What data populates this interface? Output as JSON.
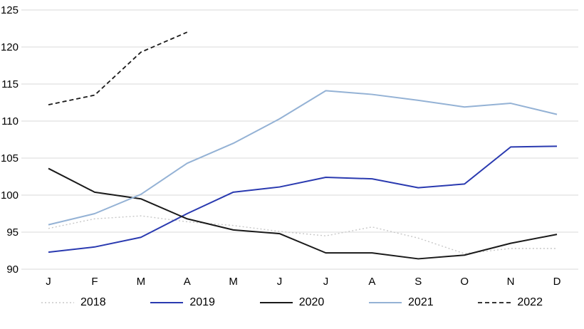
{
  "chart_data": {
    "type": "line",
    "x": [
      "J",
      "F",
      "M",
      "A",
      "M",
      "J",
      "J",
      "A",
      "S",
      "O",
      "N",
      "D"
    ],
    "xlabel": "",
    "ylabel": "",
    "ylim": [
      90,
      125
    ],
    "yticks": [
      90,
      95,
      100,
      105,
      110,
      115,
      120,
      125
    ],
    "grid": true,
    "legend_position": "bottom",
    "series": [
      {
        "name": "2018",
        "style": "dotted",
        "color": "#c8c8c8",
        "width": 1.4,
        "values": [
          95.5,
          96.8,
          97.2,
          96.4,
          95.9,
          95.1,
          94.5,
          95.7,
          94.2,
          92.1,
          92.8,
          92.8
        ]
      },
      {
        "name": "2019",
        "style": "solid",
        "color": "#2a3ab0",
        "width": 2,
        "values": [
          92.3,
          93.0,
          94.3,
          97.5,
          100.4,
          101.1,
          102.4,
          102.2,
          101.0,
          101.5,
          106.5,
          106.6
        ]
      },
      {
        "name": "2020",
        "style": "solid",
        "color": "#1a1a1a",
        "width": 2,
        "values": [
          103.6,
          100.4,
          99.5,
          96.8,
          95.3,
          94.8,
          92.2,
          92.2,
          91.4,
          91.9,
          93.5,
          94.7
        ]
      },
      {
        "name": "2021",
        "style": "solid",
        "color": "#94b2d5",
        "width": 2,
        "values": [
          96.0,
          97.5,
          100.1,
          104.3,
          107.0,
          110.3,
          114.1,
          113.6,
          112.8,
          111.9,
          112.4,
          110.9
        ]
      },
      {
        "name": "2022",
        "style": "dashed",
        "color": "#1a1a1a",
        "width": 1.8,
        "values": [
          112.2,
          113.5,
          119.3,
          122.0
        ]
      }
    ],
    "colors": {
      "grid": "#d9d9d9",
      "tick_label": "#000000",
      "background": "#ffffff"
    }
  }
}
